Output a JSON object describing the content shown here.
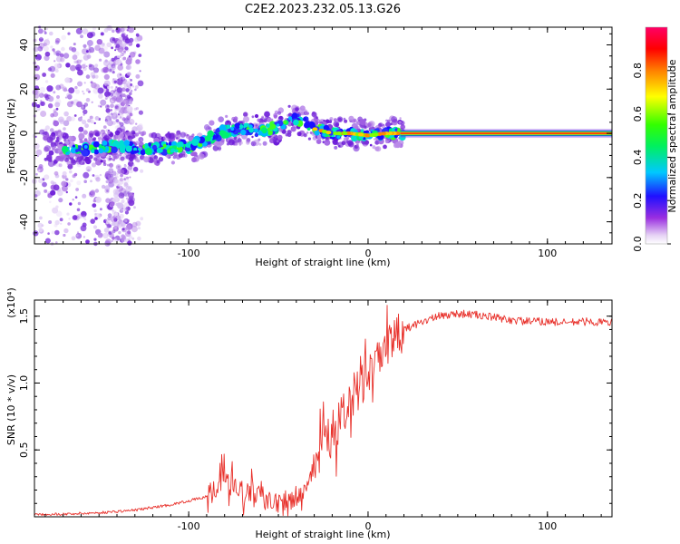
{
  "title": "C2E2.2023.232.05.13.G26",
  "chart_data": [
    {
      "type": "heatmap",
      "name": "spectrogram",
      "xlabel": "Height of straight line (km)",
      "ylabel": "Frequency (Hz)",
      "xlim": [
        -186,
        136
      ],
      "ylim": [
        -50,
        48
      ],
      "xticks": [
        -100,
        0,
        100
      ],
      "yticks": [
        40,
        20,
        0,
        -20,
        -40
      ],
      "colorbar": {
        "label": "Normalized spectral amplitude",
        "range": [
          0,
          1
        ],
        "ticks": [
          0.0,
          0.2,
          0.4,
          0.6,
          0.8
        ],
        "tick_labels": [
          "0.0",
          "0.2",
          "0.4",
          "0.6",
          "0.8"
        ],
        "colormap": "rainbow (white-violet-blue-cyan-green-yellow-red-magenta)"
      },
      "ridge": {
        "description": "Dominant Doppler frequency ridge vs height",
        "x": [
          -160,
          -140,
          -120,
          -100,
          -90,
          -80,
          -70,
          -60,
          -50,
          -40,
          -35,
          -30,
          -20,
          -10,
          0,
          10,
          20,
          136
        ],
        "y": [
          -7,
          -6,
          -7,
          -6,
          -3,
          1,
          2,
          1,
          3,
          7,
          5,
          2,
          0,
          0,
          -1,
          0,
          0,
          0
        ]
      }
    },
    {
      "type": "line",
      "name": "snr",
      "xlabel": "Height of straight line (km)",
      "ylabel": "SNR (10 * v/v)",
      "y_multiplier": "(x10⁴)",
      "xlim": [
        -186,
        136
      ],
      "ylim": [
        0,
        1.62
      ],
      "xticks": [
        -100,
        0,
        100
      ],
      "yticks": [
        0.5,
        1.0,
        1.5
      ],
      "ytick_labels": [
        "0.5",
        "1.0",
        "1.5"
      ],
      "color": "#e8302a",
      "series": [
        {
          "name": "SNR",
          "x": [
            -186,
            -170,
            -150,
            -130,
            -120,
            -110,
            -100,
            -90,
            -85,
            -80,
            -75,
            -70,
            -60,
            -50,
            -40,
            -35,
            -30,
            -25,
            -20,
            -15,
            -10,
            -5,
            0,
            5,
            10,
            15,
            20,
            30,
            40,
            50,
            60,
            70,
            80,
            90,
            100,
            110,
            120,
            136
          ],
          "y": [
            0.02,
            0.02,
            0.03,
            0.05,
            0.07,
            0.09,
            0.12,
            0.15,
            0.2,
            0.3,
            0.22,
            0.18,
            0.15,
            0.12,
            0.14,
            0.22,
            0.42,
            0.56,
            0.62,
            0.72,
            0.88,
            0.95,
            1.05,
            1.15,
            1.22,
            1.32,
            1.4,
            1.46,
            1.5,
            1.52,
            1.51,
            1.49,
            1.47,
            1.46,
            1.46,
            1.45,
            1.46,
            1.45
          ]
        }
      ]
    }
  ]
}
